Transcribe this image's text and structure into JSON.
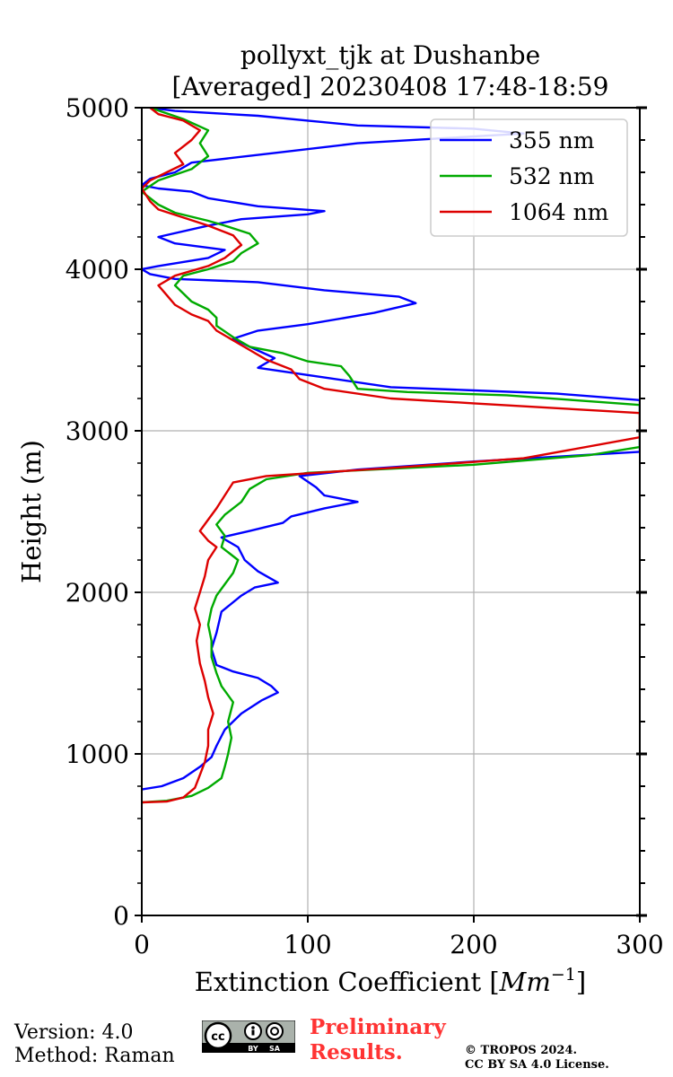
{
  "chart_data": {
    "type": "line",
    "title": [
      "pollyxt_tjk at Dushanbe",
      "[Averaged] 20230408 17:48-18:59"
    ],
    "xlabel": "Extinction Coefficient [Mm⁻¹]",
    "xlabel_parts": {
      "main": "Extinction Coefficient [",
      "unit": "Mm",
      "sup": "−1",
      "close": "]"
    },
    "ylabel": "Height (m)",
    "xlim": [
      0,
      300
    ],
    "ylim": [
      0,
      5000
    ],
    "xticks": [
      0,
      100,
      200,
      300
    ],
    "yticks": [
      0,
      1000,
      2000,
      3000,
      4000,
      5000
    ],
    "grid": true,
    "legend_position": "top-right",
    "series": [
      {
        "name": "355 nm",
        "color": "#0000ff",
        "points": [
          [
            0,
            780
          ],
          [
            12,
            800
          ],
          [
            25,
            850
          ],
          [
            35,
            920
          ],
          [
            42,
            980
          ],
          [
            45,
            1050
          ],
          [
            50,
            1150
          ],
          [
            60,
            1250
          ],
          [
            72,
            1330
          ],
          [
            82,
            1380
          ],
          [
            78,
            1420
          ],
          [
            70,
            1470
          ],
          [
            55,
            1510
          ],
          [
            45,
            1550
          ],
          [
            42,
            1650
          ],
          [
            45,
            1750
          ],
          [
            48,
            1880
          ],
          [
            60,
            1980
          ],
          [
            68,
            2030
          ],
          [
            82,
            2060
          ],
          [
            70,
            2130
          ],
          [
            62,
            2200
          ],
          [
            58,
            2280
          ],
          [
            48,
            2340
          ],
          [
            65,
            2380
          ],
          [
            85,
            2430
          ],
          [
            90,
            2470
          ],
          [
            110,
            2520
          ],
          [
            130,
            2560
          ],
          [
            110,
            2600
          ],
          [
            105,
            2650
          ],
          [
            95,
            2720
          ],
          [
            130,
            2760
          ],
          [
            200,
            2810
          ],
          [
            250,
            2840
          ],
          [
            300,
            2870
          ],
          [
            300,
            3190
          ],
          [
            250,
            3230
          ],
          [
            200,
            3250
          ],
          [
            150,
            3270
          ],
          [
            110,
            3330
          ],
          [
            70,
            3390
          ],
          [
            80,
            3450
          ],
          [
            65,
            3520
          ],
          [
            55,
            3570
          ],
          [
            70,
            3620
          ],
          [
            100,
            3660
          ],
          [
            140,
            3730
          ],
          [
            165,
            3790
          ],
          [
            155,
            3830
          ],
          [
            110,
            3870
          ],
          [
            70,
            3920
          ],
          [
            20,
            3940
          ],
          [
            5,
            3970
          ],
          [
            0,
            4000
          ],
          [
            10,
            4020
          ],
          [
            40,
            4070
          ],
          [
            50,
            4120
          ],
          [
            20,
            4160
          ],
          [
            10,
            4200
          ],
          [
            40,
            4270
          ],
          [
            60,
            4310
          ],
          [
            100,
            4340
          ],
          [
            110,
            4360
          ],
          [
            70,
            4390
          ],
          [
            40,
            4440
          ],
          [
            30,
            4480
          ],
          [
            10,
            4500
          ],
          [
            0,
            4520
          ],
          [
            5,
            4560
          ],
          [
            20,
            4600
          ],
          [
            30,
            4660
          ],
          [
            80,
            4720
          ],
          [
            130,
            4780
          ],
          [
            180,
            4810
          ],
          [
            230,
            4840
          ],
          [
            200,
            4870
          ],
          [
            130,
            4890
          ],
          [
            100,
            4920
          ],
          [
            70,
            4950
          ],
          [
            20,
            4980
          ],
          [
            5,
            5000
          ]
        ]
      },
      {
        "name": "532 nm",
        "color": "#00aa00",
        "points": [
          [
            0,
            700
          ],
          [
            15,
            710
          ],
          [
            30,
            740
          ],
          [
            40,
            790
          ],
          [
            48,
            850
          ],
          [
            50,
            920
          ],
          [
            52,
            1000
          ],
          [
            54,
            1100
          ],
          [
            52,
            1200
          ],
          [
            55,
            1320
          ],
          [
            48,
            1420
          ],
          [
            45,
            1500
          ],
          [
            42,
            1600
          ],
          [
            42,
            1700
          ],
          [
            40,
            1800
          ],
          [
            42,
            1900
          ],
          [
            45,
            1980
          ],
          [
            50,
            2050
          ],
          [
            55,
            2120
          ],
          [
            58,
            2200
          ],
          [
            48,
            2280
          ],
          [
            50,
            2350
          ],
          [
            45,
            2420
          ],
          [
            50,
            2480
          ],
          [
            60,
            2560
          ],
          [
            65,
            2640
          ],
          [
            75,
            2700
          ],
          [
            100,
            2740
          ],
          [
            200,
            2790
          ],
          [
            270,
            2850
          ],
          [
            300,
            2900
          ],
          [
            300,
            3160
          ],
          [
            260,
            3190
          ],
          [
            220,
            3220
          ],
          [
            160,
            3240
          ],
          [
            130,
            3260
          ],
          [
            125,
            3340
          ],
          [
            120,
            3400
          ],
          [
            100,
            3430
          ],
          [
            85,
            3480
          ],
          [
            65,
            3520
          ],
          [
            55,
            3580
          ],
          [
            45,
            3650
          ],
          [
            45,
            3700
          ],
          [
            40,
            3750
          ],
          [
            30,
            3800
          ],
          [
            25,
            3850
          ],
          [
            20,
            3900
          ],
          [
            25,
            3960
          ],
          [
            40,
            4000
          ],
          [
            55,
            4050
          ],
          [
            60,
            4100
          ],
          [
            70,
            4160
          ],
          [
            65,
            4220
          ],
          [
            50,
            4270
          ],
          [
            40,
            4300
          ],
          [
            20,
            4350
          ],
          [
            10,
            4400
          ],
          [
            0,
            4480
          ],
          [
            10,
            4550
          ],
          [
            30,
            4620
          ],
          [
            40,
            4700
          ],
          [
            35,
            4780
          ],
          [
            40,
            4860
          ],
          [
            25,
            4930
          ],
          [
            5,
            5000
          ]
        ]
      },
      {
        "name": "1064 nm",
        "color": "#dd0000",
        "points": [
          [
            0,
            700
          ],
          [
            15,
            705
          ],
          [
            25,
            730
          ],
          [
            32,
            790
          ],
          [
            35,
            870
          ],
          [
            38,
            950
          ],
          [
            40,
            1050
          ],
          [
            40,
            1150
          ],
          [
            43,
            1250
          ],
          [
            40,
            1350
          ],
          [
            38,
            1450
          ],
          [
            35,
            1560
          ],
          [
            33,
            1700
          ],
          [
            35,
            1800
          ],
          [
            32,
            1900
          ],
          [
            35,
            2000
          ],
          [
            38,
            2100
          ],
          [
            40,
            2200
          ],
          [
            45,
            2280
          ],
          [
            40,
            2320
          ],
          [
            35,
            2380
          ],
          [
            40,
            2450
          ],
          [
            45,
            2520
          ],
          [
            50,
            2600
          ],
          [
            55,
            2680
          ],
          [
            75,
            2720
          ],
          [
            150,
            2770
          ],
          [
            230,
            2830
          ],
          [
            300,
            2960
          ],
          [
            300,
            3110
          ],
          [
            250,
            3140
          ],
          [
            200,
            3170
          ],
          [
            150,
            3200
          ],
          [
            110,
            3260
          ],
          [
            95,
            3320
          ],
          [
            90,
            3380
          ],
          [
            75,
            3440
          ],
          [
            65,
            3500
          ],
          [
            55,
            3560
          ],
          [
            45,
            3620
          ],
          [
            40,
            3680
          ],
          [
            30,
            3720
          ],
          [
            20,
            3780
          ],
          [
            15,
            3840
          ],
          [
            10,
            3900
          ],
          [
            20,
            3960
          ],
          [
            40,
            4020
          ],
          [
            50,
            4070
          ],
          [
            60,
            4150
          ],
          [
            55,
            4210
          ],
          [
            40,
            4270
          ],
          [
            25,
            4320
          ],
          [
            10,
            4370
          ],
          [
            5,
            4420
          ],
          [
            0,
            4500
          ],
          [
            5,
            4550
          ],
          [
            15,
            4600
          ],
          [
            25,
            4650
          ],
          [
            20,
            4720
          ],
          [
            30,
            4800
          ],
          [
            35,
            4860
          ],
          [
            25,
            4920
          ],
          [
            10,
            4960
          ],
          [
            5,
            5000
          ]
        ]
      }
    ]
  },
  "footer": {
    "version": "Version: 4.0",
    "method": "Method: Raman",
    "preliminary_line1": "Preliminary",
    "preliminary_line2": "Results.",
    "copyright_line1": "© TROPOS 2024.",
    "copyright_line2": "CC BY SA 4.0 License.",
    "license_badge_icon": "cc-by-sa-icon",
    "license_badge_text_by": "BY",
    "license_badge_text_sa": "SA"
  }
}
